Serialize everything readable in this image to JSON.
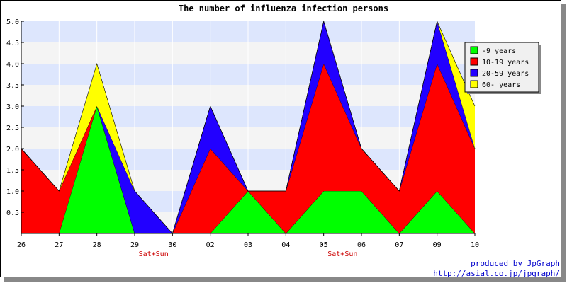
{
  "chart_data": {
    "type": "area",
    "stacked": true,
    "title": "The number of influenza infection persons",
    "categories": [
      "26",
      "27",
      "28",
      "29",
      "30",
      "02",
      "03",
      "04",
      "05",
      "06",
      "07",
      "09",
      "10"
    ],
    "category_notes": [
      "",
      "",
      "",
      "Sat+Sun",
      "",
      "",
      "",
      "",
      "Sat+Sun",
      "",
      "",
      "",
      ""
    ],
    "series": [
      {
        "name": "-9 years",
        "color": "#00ff00",
        "values": [
          0,
          0,
          3,
          0,
          0,
          0,
          1,
          0,
          1,
          1,
          0,
          1,
          0
        ]
      },
      {
        "name": "10-19 years",
        "color": "#ff0000",
        "values": [
          2,
          1,
          0,
          0,
          0,
          2,
          0,
          1,
          3,
          1,
          1,
          3,
          2
        ]
      },
      {
        "name": "20-59 years",
        "color": "#2200ff",
        "values": [
          0,
          0,
          0,
          1,
          0,
          1,
          0,
          0,
          1,
          0,
          0,
          1,
          0
        ]
      },
      {
        "name": "60- years",
        "color": "#ffff00",
        "values": [
          0,
          0,
          1,
          0,
          0,
          0,
          0,
          0,
          0,
          0,
          0,
          0,
          1
        ]
      }
    ],
    "ylim": [
      0,
      5
    ],
    "yticks": [
      "0.5",
      "1.0",
      "1.5",
      "2.0",
      "2.5",
      "3.0",
      "3.5",
      "4.0",
      "4.5",
      "5.0"
    ],
    "grid_bands": [
      "#dde6fd",
      "#f4f4f4"
    ],
    "legend": "top-right"
  },
  "credit": {
    "line1": "produced by JpGraph",
    "line2": "http://asial.co.jp/jpgraph/"
  }
}
